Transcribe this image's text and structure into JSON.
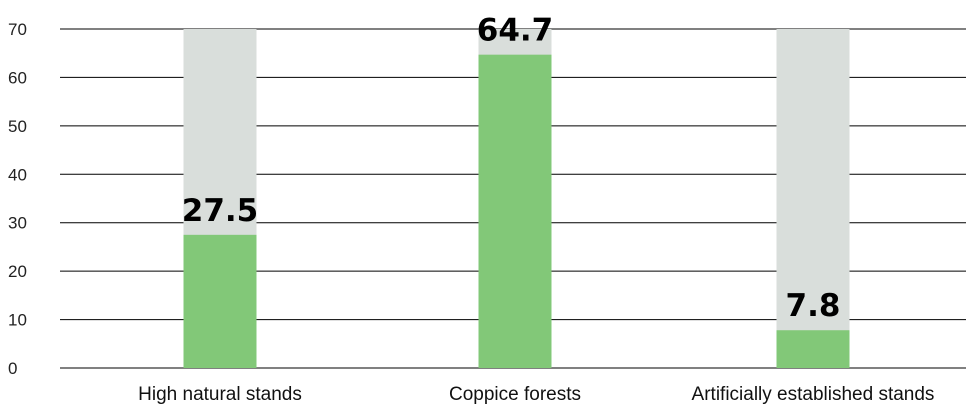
{
  "chart_data": {
    "type": "bar",
    "categories": [
      "High natural stands",
      "Coppice forests",
      "Artificially established stands"
    ],
    "values": [
      27.5,
      64.7,
      7.8
    ],
    "value_labels": [
      "27.5",
      "64.7",
      "7.8"
    ],
    "ylim": [
      0,
      70
    ],
    "yticks": [
      0,
      10,
      20,
      30,
      40,
      50,
      60,
      70
    ],
    "grid": true,
    "colors": {
      "bar": "#82c878",
      "background_bar": "#d9dedb",
      "grid": "#000000"
    }
  }
}
